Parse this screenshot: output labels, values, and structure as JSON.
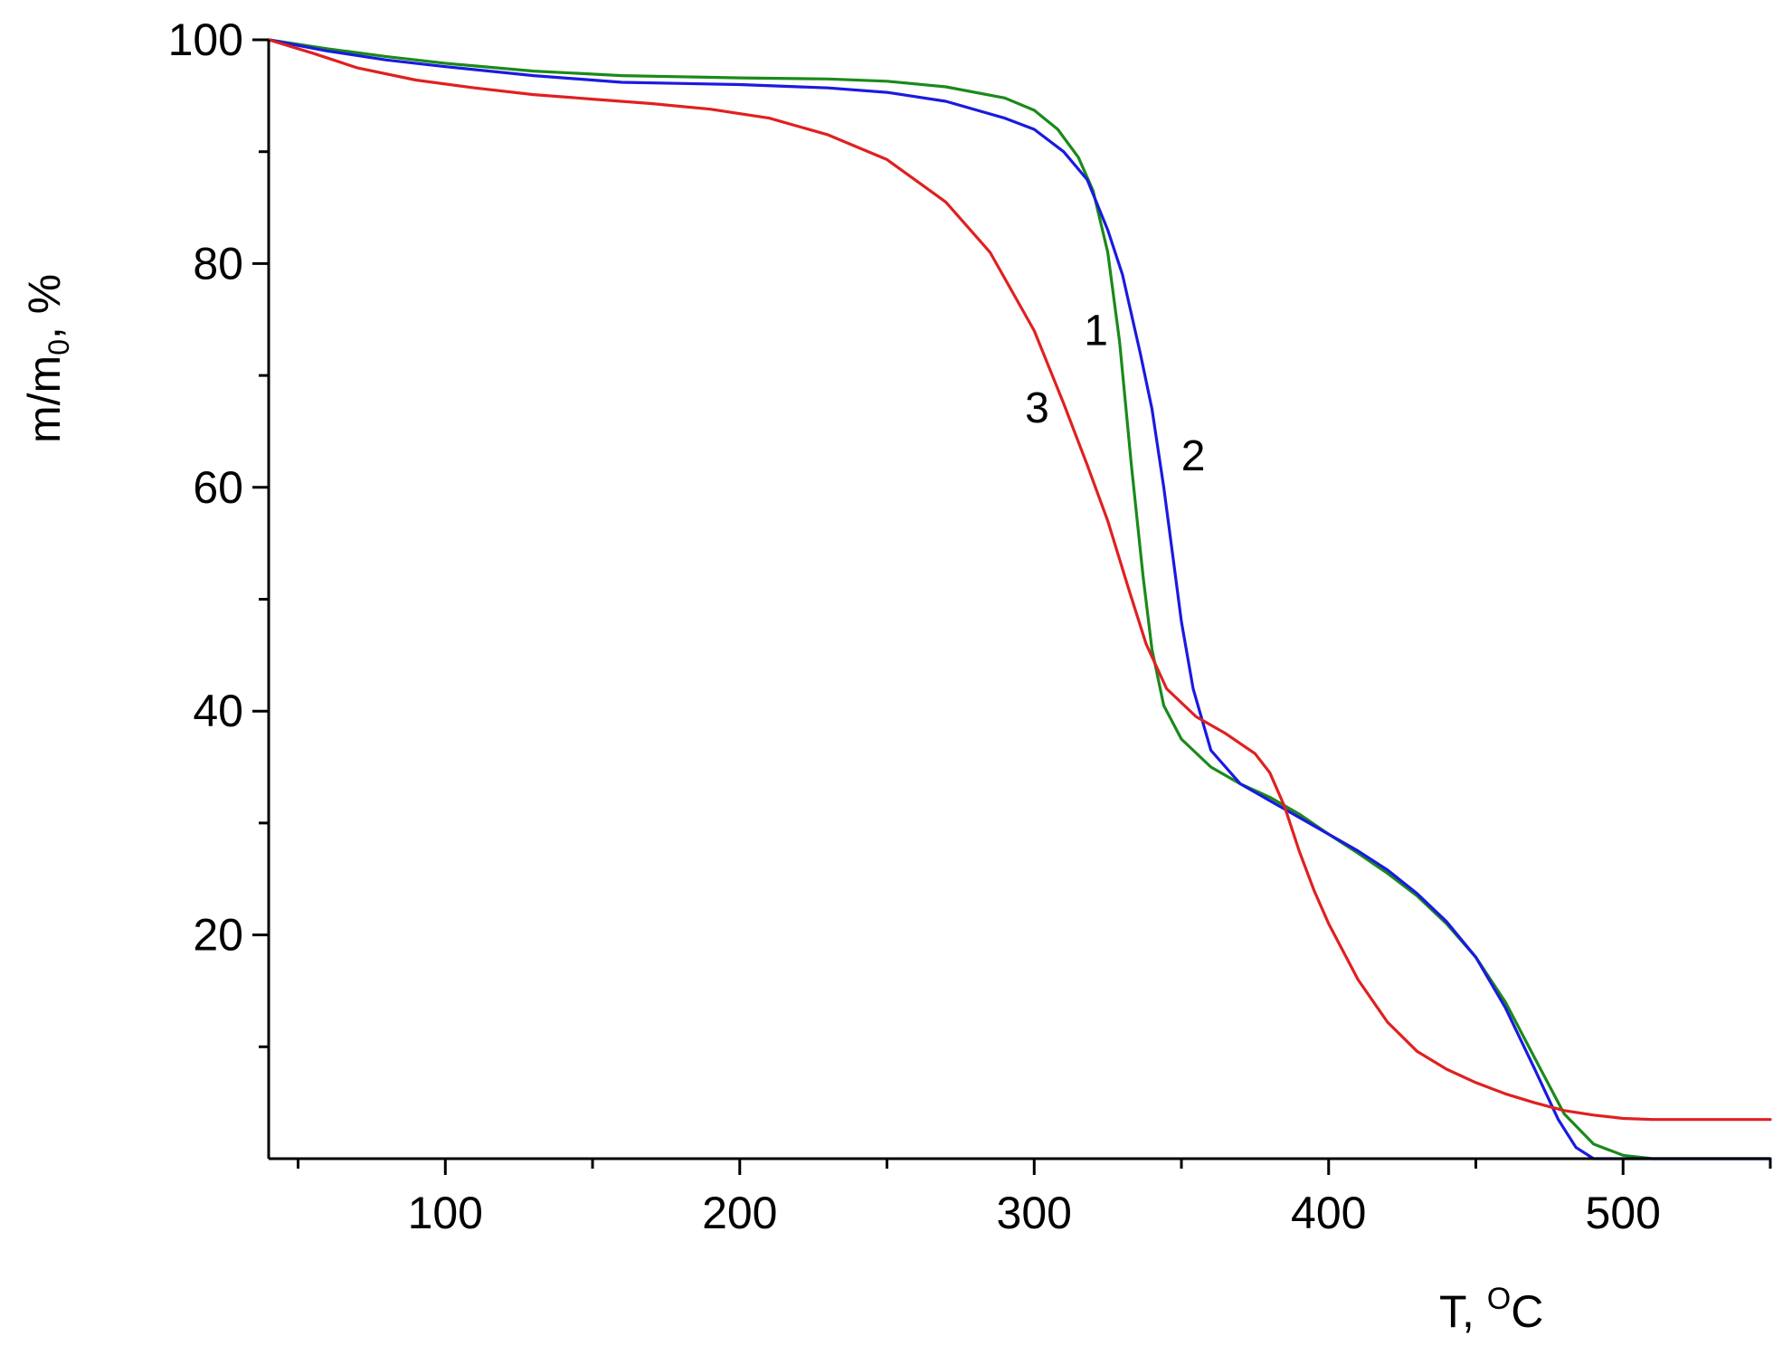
{
  "chart_data": {
    "type": "line",
    "xlabel": "T, ",
    "xlabel_sup": "O",
    "xlabel_unit": "C",
    "ylabel": "m/m",
    "ylabel_sub": "0",
    "ylabel_unit": ", %",
    "xlim": [
      40,
      550
    ],
    "ylim": [
      0,
      100
    ],
    "x_ticks": [
      100,
      200,
      300,
      400,
      500
    ],
    "x_minor_ticks": [
      50,
      150,
      250,
      350,
      450,
      550
    ],
    "y_ticks": [
      20,
      40,
      60,
      80,
      100
    ],
    "y_minor_ticks": [
      10,
      30,
      50,
      70,
      90
    ],
    "grid": false,
    "series": [
      {
        "name": "1",
        "color": "#1a8a1a",
        "points": [
          [
            40,
            100
          ],
          [
            60,
            99.2
          ],
          [
            80,
            98.5
          ],
          [
            100,
            97.9
          ],
          [
            130,
            97.2
          ],
          [
            160,
            96.8
          ],
          [
            200,
            96.6
          ],
          [
            230,
            96.5
          ],
          [
            250,
            96.3
          ],
          [
            270,
            95.8
          ],
          [
            290,
            94.8
          ],
          [
            300,
            93.7
          ],
          [
            308,
            92
          ],
          [
            315,
            89.5
          ],
          [
            320,
            86.5
          ],
          [
            325,
            81
          ],
          [
            329,
            73
          ],
          [
            333,
            62
          ],
          [
            337,
            52
          ],
          [
            340,
            45.5
          ],
          [
            344,
            40.5
          ],
          [
            350,
            37.5
          ],
          [
            360,
            35
          ],
          [
            370,
            33.5
          ],
          [
            380,
            32.3
          ],
          [
            390,
            30.8
          ],
          [
            400,
            29
          ],
          [
            410,
            27.3
          ],
          [
            420,
            25.5
          ],
          [
            430,
            23.5
          ],
          [
            440,
            21
          ],
          [
            450,
            18
          ],
          [
            460,
            14
          ],
          [
            470,
            9
          ],
          [
            480,
            4
          ],
          [
            490,
            1.3
          ],
          [
            500,
            0.3
          ],
          [
            510,
            0
          ],
          [
            550,
            0
          ]
        ]
      },
      {
        "name": "2",
        "color": "#1a1ae0",
        "points": [
          [
            40,
            100
          ],
          [
            60,
            99
          ],
          [
            80,
            98.2
          ],
          [
            100,
            97.6
          ],
          [
            130,
            96.8
          ],
          [
            160,
            96.2
          ],
          [
            200,
            96
          ],
          [
            230,
            95.7
          ],
          [
            250,
            95.3
          ],
          [
            270,
            94.5
          ],
          [
            290,
            93
          ],
          [
            300,
            92
          ],
          [
            310,
            90
          ],
          [
            318,
            87.5
          ],
          [
            325,
            83
          ],
          [
            330,
            79
          ],
          [
            336,
            72
          ],
          [
            340,
            67
          ],
          [
            344,
            60
          ],
          [
            347,
            54
          ],
          [
            350,
            48
          ],
          [
            354,
            42
          ],
          [
            360,
            36.5
          ],
          [
            370,
            33.5
          ],
          [
            380,
            32
          ],
          [
            390,
            30.5
          ],
          [
            400,
            29
          ],
          [
            410,
            27.5
          ],
          [
            420,
            25.8
          ],
          [
            430,
            23.7
          ],
          [
            440,
            21.2
          ],
          [
            450,
            18
          ],
          [
            460,
            13.5
          ],
          [
            470,
            8
          ],
          [
            478,
            3.5
          ],
          [
            484,
            1
          ],
          [
            490,
            0
          ],
          [
            550,
            0
          ]
        ]
      },
      {
        "name": "3",
        "color": "#e02020",
        "points": [
          [
            40,
            100
          ],
          [
            55,
            98.8
          ],
          [
            70,
            97.5
          ],
          [
            90,
            96.4
          ],
          [
            110,
            95.7
          ],
          [
            130,
            95.1
          ],
          [
            150,
            94.7
          ],
          [
            170,
            94.3
          ],
          [
            190,
            93.8
          ],
          [
            210,
            93
          ],
          [
            230,
            91.5
          ],
          [
            250,
            89.3
          ],
          [
            270,
            85.5
          ],
          [
            285,
            81
          ],
          [
            300,
            74
          ],
          [
            310,
            67.5
          ],
          [
            318,
            62
          ],
          [
            325,
            57
          ],
          [
            332,
            51
          ],
          [
            338,
            46
          ],
          [
            345,
            42
          ],
          [
            355,
            39.5
          ],
          [
            365,
            38
          ],
          [
            375,
            36.2
          ],
          [
            380,
            34.5
          ],
          [
            385,
            31.5
          ],
          [
            390,
            27.5
          ],
          [
            395,
            24
          ],
          [
            400,
            21
          ],
          [
            410,
            16
          ],
          [
            420,
            12.2
          ],
          [
            430,
            9.6
          ],
          [
            440,
            8
          ],
          [
            450,
            6.8
          ],
          [
            460,
            5.8
          ],
          [
            470,
            5
          ],
          [
            480,
            4.3
          ],
          [
            490,
            3.9
          ],
          [
            500,
            3.6
          ],
          [
            510,
            3.5
          ],
          [
            550,
            3.5
          ]
        ]
      }
    ],
    "annotations": [
      {
        "text": "1",
        "x": 321,
        "y": 72.7
      },
      {
        "text": "2",
        "x": 354,
        "y": 61.5
      },
      {
        "text": "3",
        "x": 301,
        "y": 65.8
      }
    ]
  }
}
